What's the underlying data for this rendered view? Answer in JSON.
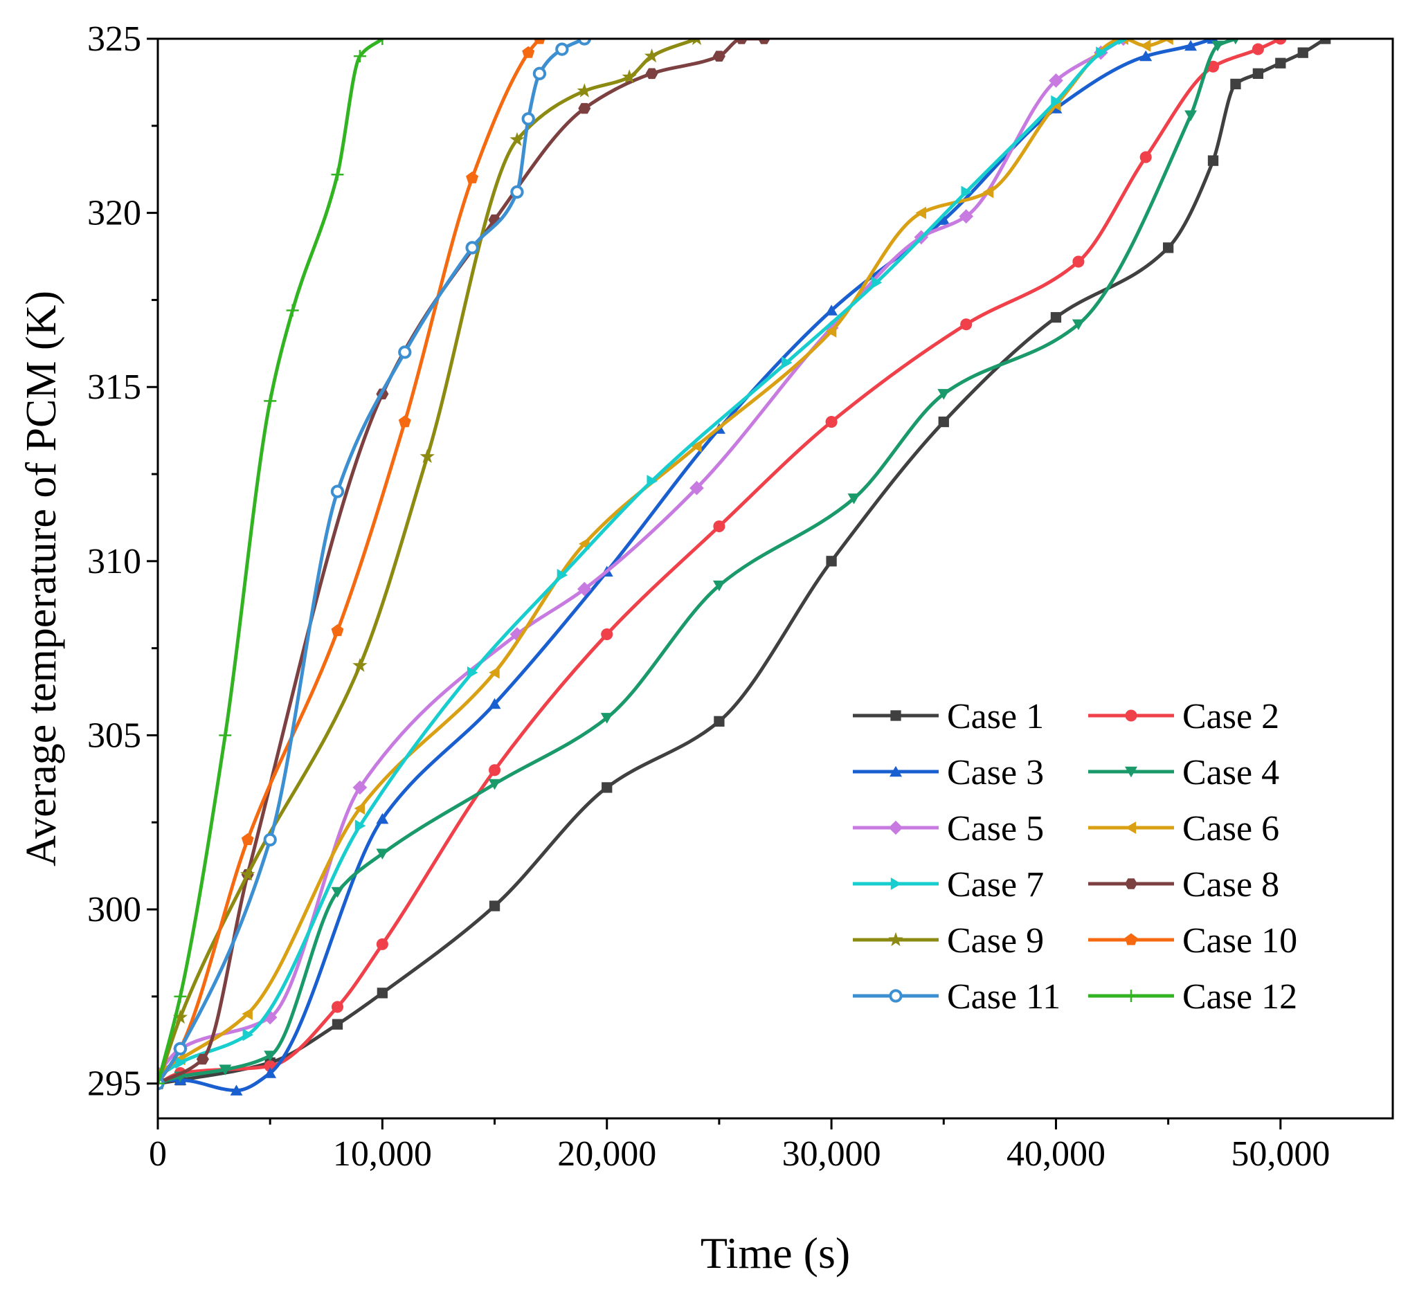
{
  "chart_data": {
    "type": "line",
    "title": "",
    "xlabel": "Time (s)",
    "ylabel": "Average temperature of PCM (K)",
    "xlim": [
      0,
      55000
    ],
    "ylim": [
      294,
      325
    ],
    "xticks": [
      0,
      10000,
      20000,
      30000,
      40000,
      50000
    ],
    "xtick_labels": [
      "0",
      "10,000",
      "20,000",
      "30,000",
      "40,000",
      "50,000"
    ],
    "yticks": [
      295,
      300,
      305,
      310,
      315,
      320,
      325
    ],
    "ytick_labels": [
      "295",
      "300",
      "305",
      "310",
      "315",
      "320",
      "325"
    ],
    "grid": false,
    "legend_position": "lower-right",
    "series": [
      {
        "name": "Case 1",
        "color": "#404040",
        "marker": "square",
        "x": [
          0,
          1000,
          5000,
          8000,
          10000,
          15000,
          20000,
          25000,
          30000,
          35000,
          40000,
          45000,
          47000,
          48000,
          49000,
          50000,
          51000,
          52000
        ],
        "y": [
          295,
          295.1,
          295.6,
          296.7,
          297.6,
          300.1,
          303.5,
          305.4,
          310,
          314,
          317,
          319,
          321.5,
          323.7,
          324,
          324.3,
          324.6,
          325
        ]
      },
      {
        "name": "Case 2",
        "color": "#f0404a",
        "marker": "circle",
        "x": [
          0,
          1000,
          5000,
          8000,
          10000,
          15000,
          20000,
          25000,
          30000,
          36000,
          41000,
          44000,
          47000,
          49000,
          50000
        ],
        "y": [
          295,
          295.3,
          295.5,
          297.2,
          299,
          304,
          307.9,
          311,
          314,
          316.8,
          318.6,
          321.6,
          324.2,
          324.7,
          325
        ]
      },
      {
        "name": "Case 3",
        "color": "#1a5fd0",
        "marker": "triangle-up",
        "x": [
          0,
          1000,
          3500,
          5000,
          10000,
          15000,
          20000,
          25000,
          30000,
          35000,
          40000,
          44000,
          46000,
          47000
        ],
        "y": [
          295.1,
          295.1,
          294.8,
          295.3,
          302.6,
          305.9,
          309.7,
          313.8,
          317.2,
          319.8,
          323,
          324.5,
          324.8,
          325
        ]
      },
      {
        "name": "Case 4",
        "color": "#1a9a6a",
        "marker": "triangle-down",
        "x": [
          0,
          1000,
          3000,
          5000,
          8000,
          10000,
          15000,
          20000,
          25000,
          31000,
          35000,
          41000,
          46000,
          47200,
          48000
        ],
        "y": [
          295,
          295.2,
          295.4,
          295.8,
          300.5,
          301.6,
          303.6,
          305.5,
          309.3,
          311.8,
          314.8,
          316.8,
          322.8,
          324.8,
          325
        ]
      },
      {
        "name": "Case 5",
        "color": "#c77ae0",
        "marker": "diamond",
        "x": [
          0,
          1000,
          5000,
          9000,
          16000,
          19000,
          24000,
          30000,
          34000,
          36000,
          40000,
          42000,
          43000
        ],
        "y": [
          295.3,
          296,
          296.9,
          303.5,
          307.9,
          309.2,
          312.1,
          316.7,
          319.3,
          319.9,
          323.8,
          324.6,
          325
        ]
      },
      {
        "name": "Case 6",
        "color": "#d9a014",
        "marker": "triangle-left",
        "x": [
          0,
          1000,
          4000,
          9000,
          15000,
          19000,
          24000,
          30000,
          34000,
          37000,
          40000,
          43000,
          44000,
          45000
        ],
        "y": [
          295.3,
          295.7,
          297,
          302.9,
          306.8,
          310.5,
          313.3,
          316.6,
          320,
          320.6,
          323.1,
          325,
          324.8,
          325
        ]
      },
      {
        "name": "Case 7",
        "color": "#18cdcd",
        "marker": "triangle-right",
        "x": [
          0,
          1000,
          4000,
          9000,
          14000,
          18000,
          22000,
          28000,
          32000,
          36000,
          40000,
          42000,
          43000
        ],
        "y": [
          295.2,
          295.6,
          296.4,
          302.4,
          306.8,
          309.6,
          312.3,
          315.7,
          318,
          320.6,
          323.2,
          324.6,
          325
        ]
      },
      {
        "name": "Case 8",
        "color": "#7d4040",
        "marker": "hexagon",
        "x": [
          0,
          2000,
          4000,
          10000,
          15000,
          19000,
          22000,
          25000,
          26000,
          27000
        ],
        "y": [
          295,
          295.7,
          301,
          314.8,
          319.8,
          323,
          324,
          324.5,
          325,
          325
        ]
      },
      {
        "name": "Case 9",
        "color": "#8c8a10",
        "marker": "star",
        "x": [
          0,
          1000,
          4000,
          9000,
          12000,
          16000,
          19000,
          21000,
          22000,
          24000
        ],
        "y": [
          295,
          296.9,
          301,
          307,
          313,
          322.1,
          323.5,
          323.9,
          324.5,
          325
        ]
      },
      {
        "name": "Case 10",
        "color": "#f56a10",
        "marker": "pentagon",
        "x": [
          0,
          1000,
          4000,
          8000,
          11000,
          14000,
          16500,
          17000
        ],
        "y": [
          295,
          296,
          302,
          308,
          314,
          321,
          324.6,
          325
        ]
      },
      {
        "name": "Case 11",
        "color": "#3c8fd1",
        "marker": "circle-dot",
        "x": [
          0,
          1000,
          5000,
          8000,
          11000,
          14000,
          16000,
          16500,
          17000,
          18000,
          19000
        ],
        "y": [
          295,
          296,
          302,
          312,
          316,
          319,
          320.6,
          322.7,
          324,
          324.7,
          325
        ]
      },
      {
        "name": "Case 12",
        "color": "#32b422",
        "marker": "plus",
        "x": [
          0,
          1000,
          3000,
          5000,
          6000,
          8000,
          9000,
          10000
        ],
        "y": [
          295,
          297.5,
          305,
          314.6,
          317.2,
          321.1,
          324.5,
          325
        ]
      }
    ]
  }
}
